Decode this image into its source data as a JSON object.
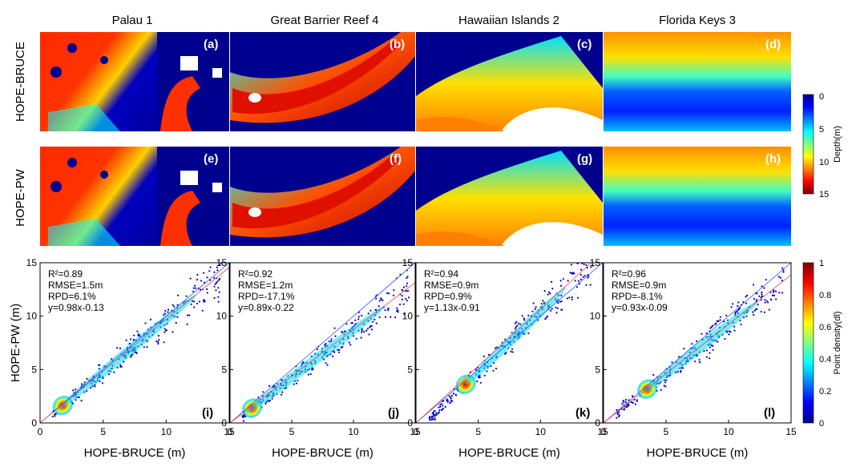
{
  "column_titles": [
    "Palau 1",
    "Great Barrier Reef 4",
    "Hawaiian Islands 2",
    "Florida Keys 3"
  ],
  "row_labels": [
    "HOPE-BRUCE",
    "HOPE-PW"
  ],
  "map_panels": [
    {
      "label": "(a)",
      "site": "Palau 1",
      "method": "HOPE-BRUCE"
    },
    {
      "label": "(b)",
      "site": "Great Barrier Reef 4",
      "method": "HOPE-BRUCE"
    },
    {
      "label": "(c)",
      "site": "Hawaiian Islands 2",
      "method": "HOPE-BRUCE"
    },
    {
      "label": "(d)",
      "site": "Florida Keys 3",
      "method": "HOPE-BRUCE"
    },
    {
      "label": "(e)",
      "site": "Palau 1",
      "method": "HOPE-PW"
    },
    {
      "label": "(f)",
      "site": "Great Barrier Reef 4",
      "method": "HOPE-PW"
    },
    {
      "label": "(g)",
      "site": "Hawaiian Islands 2",
      "method": "HOPE-PW"
    },
    {
      "label": "(h)",
      "site": "Florida Keys 3",
      "method": "HOPE-PW"
    }
  ],
  "depth_colorbar": {
    "label": "Depth(m)",
    "ticks": [
      "0",
      "5",
      "10",
      "15"
    ],
    "min": 0,
    "max": 15,
    "reversed": true
  },
  "density_colorbar": {
    "label": "Point density(dl)",
    "ticks": [
      "0",
      "0.2",
      "0.4",
      "0.6",
      "0.8",
      "1"
    ],
    "min": 0,
    "max": 1
  },
  "colormap": [
    "#00008f",
    "#0000ff",
    "#0080ff",
    "#00ffff",
    "#80ff80",
    "#ffff00",
    "#ff8000",
    "#ff0000",
    "#800000"
  ],
  "chart_data": [
    {
      "type": "scatter",
      "panel": "(i)",
      "site": "Palau 1",
      "xlabel": "HOPE-BRUCE (m)",
      "ylabel": "HOPE-PW (m)",
      "xlim": [
        0,
        15
      ],
      "ylim": [
        0,
        15
      ],
      "xticks": [
        "0",
        "5",
        "10",
        "15"
      ],
      "yticks": [
        "0",
        "5",
        "10",
        "15"
      ],
      "stats": [
        "R²=0.89",
        "RMSE=1.5m",
        "RPD=6.1%",
        "y=0.98x-0.13"
      ],
      "fit": {
        "slope": 0.98,
        "intercept": -0.13
      }
    },
    {
      "type": "scatter",
      "panel": "(j)",
      "site": "Great Barrier Reef 4",
      "xlabel": "HOPE-BRUCE (m)",
      "ylabel": "",
      "xlim": [
        0,
        15
      ],
      "ylim": [
        0,
        15
      ],
      "xticks": [
        "0",
        "5",
        "10",
        "15"
      ],
      "yticks": [
        "0",
        "5",
        "10",
        "15"
      ],
      "stats": [
        "R²=0.92",
        "RMSE=1.2m",
        "RPD=-17.1%",
        "y=0.89x-0.22"
      ],
      "fit": {
        "slope": 0.89,
        "intercept": -0.22
      }
    },
    {
      "type": "scatter",
      "panel": "(k)",
      "site": "Hawaiian Islands 2",
      "xlabel": "HOPE-BRUCE (m)",
      "ylabel": "",
      "xlim": [
        0,
        15
      ],
      "ylim": [
        0,
        15
      ],
      "xticks": [
        "0",
        "5",
        "10",
        "15"
      ],
      "yticks": [
        "0",
        "5",
        "10",
        "15"
      ],
      "stats": [
        "R²=0.94",
        "RMSE=0.9m",
        "RPD=0.9%",
        "y=1.13x-0.91"
      ],
      "fit": {
        "slope": 1.13,
        "intercept": -0.91
      }
    },
    {
      "type": "scatter",
      "panel": "(l)",
      "site": "Florida Keys 3",
      "xlabel": "HOPE-BRUCE (m)",
      "ylabel": "",
      "xlim": [
        0,
        15
      ],
      "ylim": [
        0,
        15
      ],
      "xticks": [
        "0",
        "5",
        "10",
        "15"
      ],
      "yticks": [
        "0",
        "5",
        "10",
        "15"
      ],
      "stats": [
        "R²=0.96",
        "RMSE=0.9m",
        "RPD=-8.1%",
        "y=0.93x-0.09"
      ],
      "fit": {
        "slope": 0.93,
        "intercept": -0.09
      }
    }
  ]
}
